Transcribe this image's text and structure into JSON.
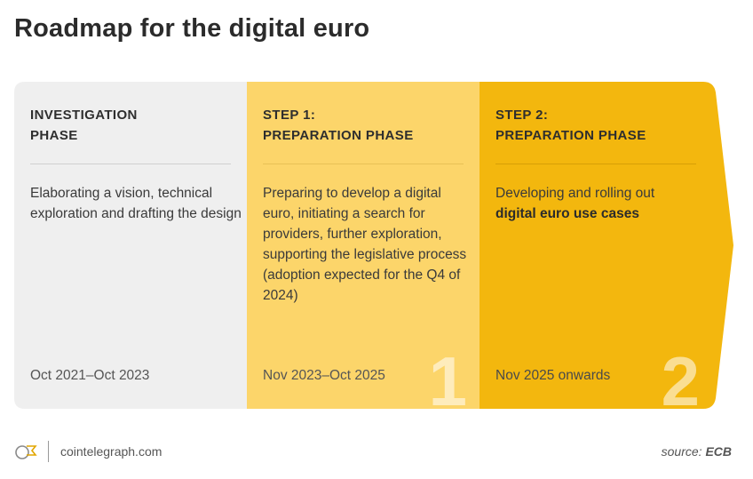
{
  "title": "Roadmap for the digital euro",
  "colors": {
    "phase0_bg": "#efefef",
    "phase1_bg": "#fcd56a",
    "phase2_bg": "#f3b70e"
  },
  "phases": [
    {
      "heading_line1": "INVESTIGATION",
      "heading_line2": "PHASE",
      "description": "Elaborating a vision, technical exploration and drafting the design",
      "period": "Oct 2021–Oct 2023",
      "number": ""
    },
    {
      "heading_line1": "STEP 1:",
      "heading_line2": "PREPARATION PHASE",
      "description": "Preparing to develop a digital euro, initiating a search for providers, further exploration, supporting the legislative process (adoption expected for the Q4 of 2024)",
      "period": "Nov 2023–Oct 2025",
      "number": "1"
    },
    {
      "heading_line1": "STEP 2:",
      "heading_line2": "PREPARATION PHASE",
      "description_plain": "Developing and rolling out",
      "description_bold": "digital euro use cases",
      "period": "Nov 2025 onwards",
      "number": "2"
    }
  ],
  "footer": {
    "site": "cointelegraph.com",
    "source_label": "source:",
    "source_value": "ECB",
    "logo_icon": "cointelegraph-logo-icon"
  }
}
